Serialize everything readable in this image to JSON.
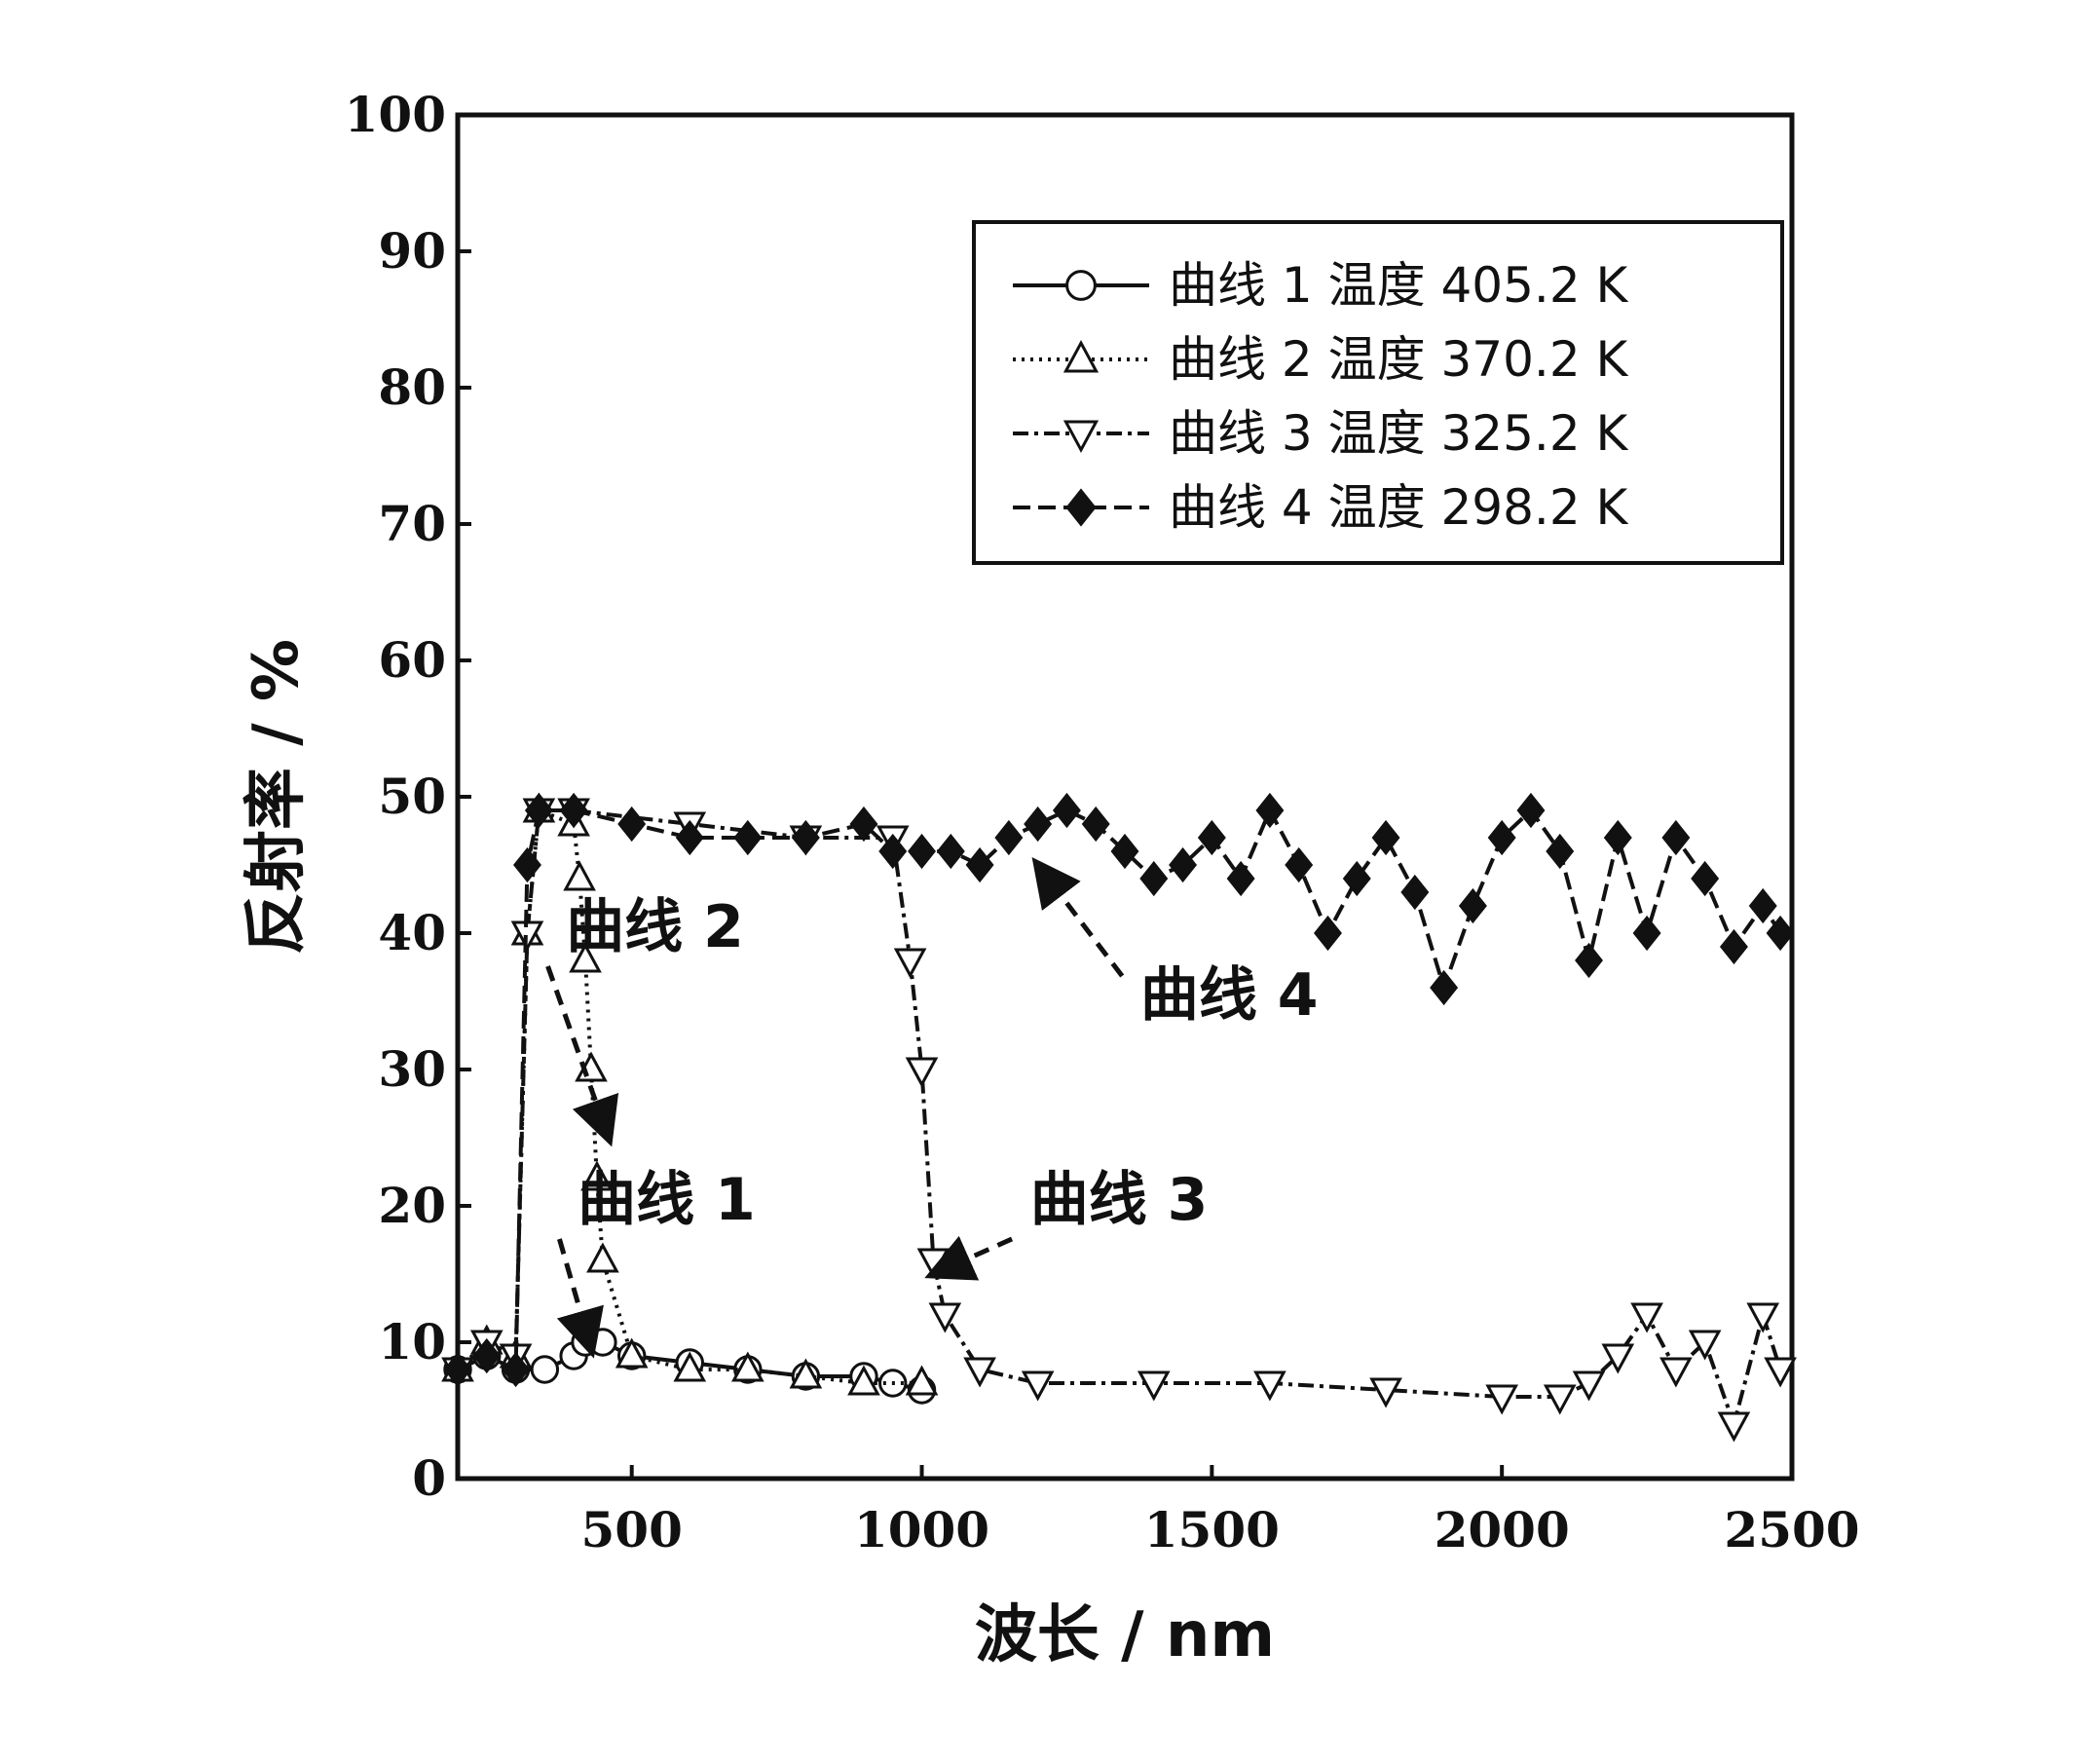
{
  "chart_data": {
    "type": "line",
    "xlabel": "波长 / nm",
    "ylabel": "反射率 / %",
    "xlim": [
      200,
      2500
    ],
    "ylim": [
      0,
      100
    ],
    "x_ticks": [
      500,
      1000,
      1500,
      2000,
      2500
    ],
    "y_ticks": [
      0,
      10,
      20,
      30,
      40,
      50,
      60,
      70,
      80,
      90,
      100
    ],
    "grid": false,
    "legend_position": "top-right",
    "series": [
      {
        "name": "曲线 1 温度 405.2 K",
        "marker": "circle-open",
        "line": "solid",
        "x": [
          200,
          250,
          300,
          350,
          400,
          420,
          450,
          500,
          600,
          700,
          800,
          900,
          950,
          1000
        ],
        "y": [
          8,
          9,
          8,
          8,
          9,
          10,
          10,
          9,
          8.5,
          8,
          7.5,
          7.5,
          7,
          6.5
        ]
      },
      {
        "name": "曲线 2 温度 370.2 K",
        "marker": "triangle-up-open",
        "line": "dotted",
        "x": [
          200,
          250,
          300,
          320,
          340,
          400,
          410,
          420,
          430,
          440,
          450,
          500,
          600,
          700,
          800,
          900,
          1000
        ],
        "y": [
          8,
          10,
          9,
          40,
          49,
          48,
          44,
          38,
          30,
          22,
          16,
          9,
          8,
          8,
          7.5,
          7,
          7
        ]
      },
      {
        "name": "曲线 3 温度 325.2 K",
        "marker": "triangle-down-open",
        "line": "dash-dot",
        "x": [
          200,
          250,
          300,
          320,
          340,
          400,
          600,
          800,
          950,
          980,
          1000,
          1020,
          1040,
          1100,
          1200,
          1400,
          1600,
          1800,
          2000,
          2100,
          2150,
          2200,
          2250,
          2300,
          2350,
          2400,
          2450,
          2480
        ],
        "y": [
          8,
          10,
          9,
          40,
          49,
          49,
          48,
          47,
          47,
          38,
          30,
          16,
          12,
          8,
          7,
          7,
          7,
          6.5,
          6,
          6,
          7,
          9,
          12,
          8,
          10,
          4,
          12,
          8
        ]
      },
      {
        "name": "曲线 4 温度 298.2 K",
        "marker": "diamond-filled",
        "line": "dash",
        "x": [
          200,
          250,
          300,
          320,
          340,
          400,
          500,
          600,
          700,
          800,
          900,
          950,
          1000,
          1050,
          1100,
          1150,
          1200,
          1250,
          1300,
          1350,
          1400,
          1450,
          1500,
          1550,
          1600,
          1650,
          1700,
          1750,
          1800,
          1850,
          1900,
          1950,
          2000,
          2050,
          2100,
          2150,
          2200,
          2250,
          2300,
          2350,
          2400,
          2450,
          2480
        ],
        "y": [
          8,
          9,
          8,
          45,
          49,
          49,
          48,
          47,
          47,
          47,
          48,
          46,
          46,
          46,
          45,
          47,
          48,
          49,
          48,
          46,
          44,
          45,
          47,
          44,
          49,
          45,
          40,
          44,
          47,
          43,
          36,
          42,
          47,
          49,
          46,
          38,
          47,
          40,
          47,
          44,
          39,
          42,
          40
        ]
      }
    ],
    "annotations": [
      {
        "text": "曲线 2",
        "x": 540,
        "y": 39,
        "arrow_to_x": 460,
        "arrow_to_y": 25
      },
      {
        "text": "曲线 1",
        "x": 560,
        "y": 19,
        "arrow_to_x": 430,
        "arrow_to_y": 9.5
      },
      {
        "text": "曲线 3",
        "x": 1340,
        "y": 19,
        "arrow_to_x": 1020,
        "arrow_to_y": 15
      },
      {
        "text": "曲线 4",
        "x": 1530,
        "y": 34,
        "arrow_to_x": 1200,
        "arrow_to_y": 45
      }
    ]
  }
}
